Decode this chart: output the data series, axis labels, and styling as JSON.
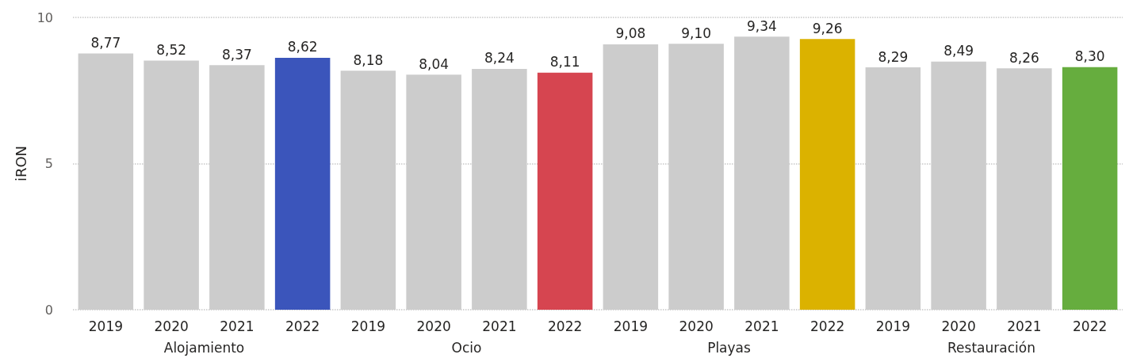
{
  "chart_data": {
    "type": "bar",
    "ylabel": "iRON",
    "categories": [
      "2019",
      "2020",
      "2021",
      "2022",
      "2019",
      "2020",
      "2021",
      "2022",
      "2019",
      "2020",
      "2021",
      "2022",
      "2019",
      "2020",
      "2021",
      "2022"
    ],
    "values": [
      8.77,
      8.52,
      8.37,
      8.62,
      8.18,
      8.04,
      8.24,
      8.11,
      9.08,
      9.1,
      9.34,
      9.26,
      8.29,
      8.49,
      8.26,
      8.3
    ],
    "value_labels": [
      "8,77",
      "8,52",
      "8,37",
      "8,62",
      "8,18",
      "8,04",
      "8,24",
      "8,11",
      "9,08",
      "9,10",
      "9,34",
      "9,26",
      "8,29",
      "8,49",
      "8,26",
      "8,30"
    ],
    "colors": [
      "#cccccc",
      "#cccccc",
      "#cccccc",
      "#3b55bb",
      "#cccccc",
      "#cccccc",
      "#cccccc",
      "#d64550",
      "#cccccc",
      "#cccccc",
      "#cccccc",
      "#dbb200",
      "#cccccc",
      "#cccccc",
      "#cccccc",
      "#66ad3e"
    ],
    "annotations": [
      "Alojamiento",
      "Ocio",
      "Playas",
      "Restauración"
    ],
    "ylim": [
      0,
      10
    ],
    "yticks": [
      0,
      5,
      10
    ],
    "grid": "y"
  }
}
